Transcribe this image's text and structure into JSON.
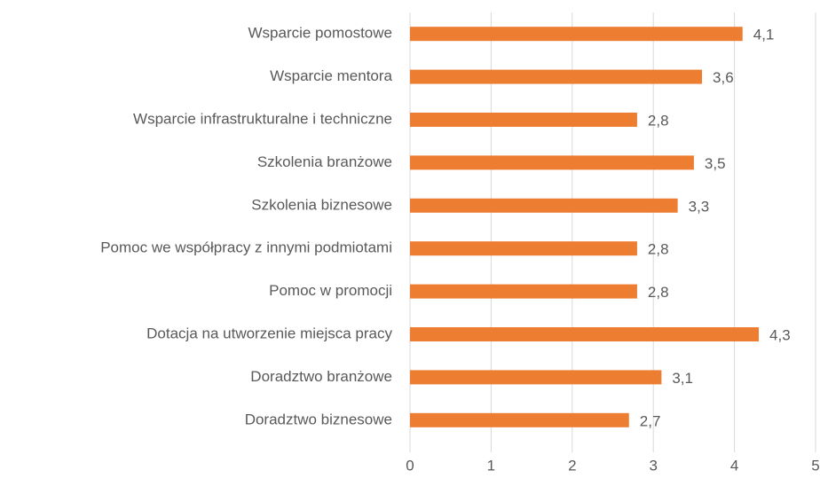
{
  "chart_data": {
    "type": "hbar",
    "categories": [
      "Wsparcie pomostowe",
      "Wsparcie mentora",
      "Wsparcie infrastrukturalne i techniczne",
      "Szkolenia branżowe",
      "Szkolenia biznesowe",
      "Pomoc we współpracy z innymi podmiotami",
      "Pomoc w promocji",
      "Dotacja na utworzenie miejsca pracy",
      "Doradztwo branżowe",
      "Doradztwo biznesowe"
    ],
    "values": [
      4.1,
      3.6,
      2.8,
      3.5,
      3.3,
      2.8,
      2.8,
      4.3,
      3.1,
      2.7
    ],
    "value_labels": [
      "4,1",
      "3,6",
      "2,8",
      "3,5",
      "3,3",
      "2,8",
      "2,8",
      "4,3",
      "3,1",
      "2,7"
    ],
    "color": "#ed7d31",
    "xlim": [
      0,
      5
    ],
    "xticks": [
      0,
      1,
      2,
      3,
      4,
      5
    ],
    "grid": true
  }
}
